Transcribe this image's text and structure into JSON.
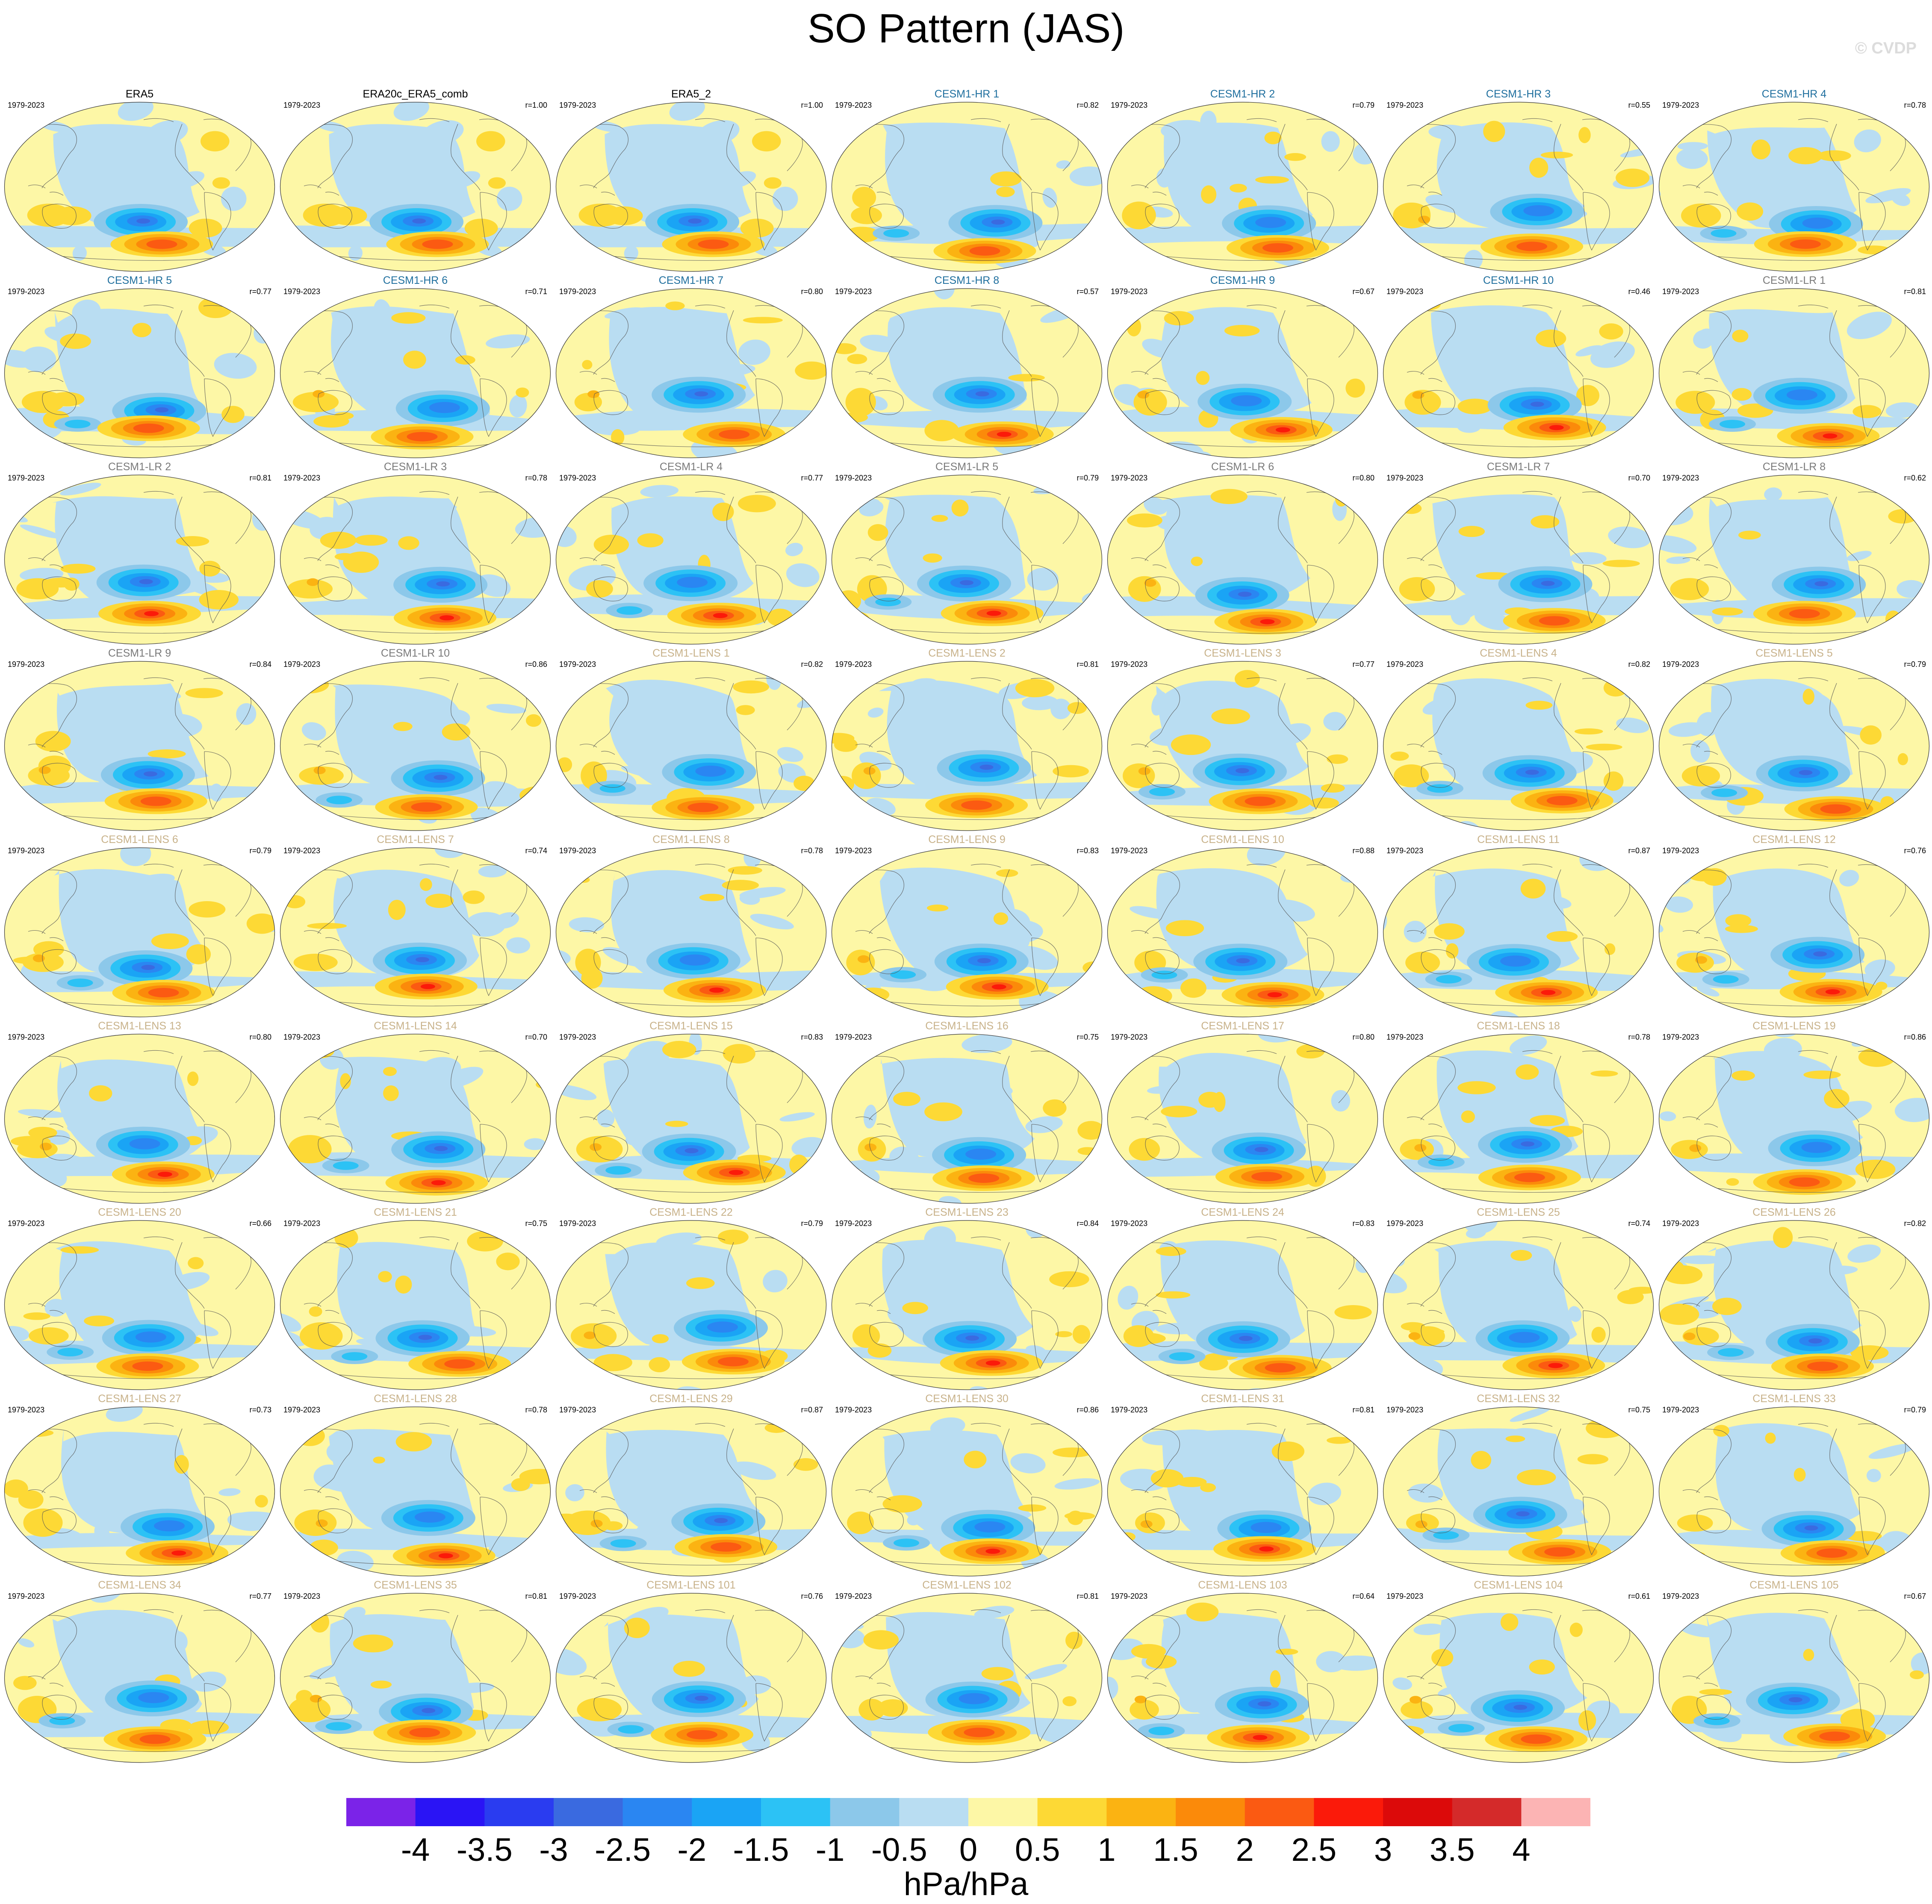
{
  "title": "SO Pattern (JAS)",
  "watermark": "© CVDP",
  "panels": [
    {
      "name": "ERA5",
      "period": "1979-2023",
      "r": "",
      "group": "obs",
      "seed": 1
    },
    {
      "name": "ERA20c_ERA5_comb",
      "period": "1979-2023",
      "r": "r=1.00",
      "group": "obs",
      "seed": 1
    },
    {
      "name": "ERA5_2",
      "period": "1979-2023",
      "r": "r=1.00",
      "group": "obs",
      "seed": 1
    },
    {
      "name": "CESM1-HR 1",
      "period": "1979-2023",
      "r": "r=0.82",
      "group": "hr",
      "seed": 4
    },
    {
      "name": "CESM1-HR 2",
      "period": "1979-2023",
      "r": "r=0.79",
      "group": "hr",
      "seed": 5
    },
    {
      "name": "CESM1-HR 3",
      "period": "1979-2023",
      "r": "r=0.55",
      "group": "hr",
      "seed": 6
    },
    {
      "name": "CESM1-HR 4",
      "period": "1979-2023",
      "r": "r=0.78",
      "group": "hr",
      "seed": 7
    },
    {
      "name": "CESM1-HR 5",
      "period": "1979-2023",
      "r": "r=0.77",
      "group": "hr",
      "seed": 8
    },
    {
      "name": "CESM1-HR 6",
      "period": "1979-2023",
      "r": "r=0.71",
      "group": "hr",
      "seed": 9
    },
    {
      "name": "CESM1-HR 7",
      "period": "1979-2023",
      "r": "r=0.80",
      "group": "hr",
      "seed": 10
    },
    {
      "name": "CESM1-HR 8",
      "period": "1979-2023",
      "r": "r=0.57",
      "group": "hr",
      "seed": 11
    },
    {
      "name": "CESM1-HR 9",
      "period": "1979-2023",
      "r": "r=0.67",
      "group": "hr",
      "seed": 12
    },
    {
      "name": "CESM1-HR 10",
      "period": "1979-2023",
      "r": "r=0.46",
      "group": "hr",
      "seed": 13
    },
    {
      "name": "CESM1-LR 1",
      "period": "1979-2023",
      "r": "r=0.81",
      "group": "lr",
      "seed": 14
    },
    {
      "name": "CESM1-LR 2",
      "period": "1979-2023",
      "r": "r=0.81",
      "group": "lr",
      "seed": 15
    },
    {
      "name": "CESM1-LR 3",
      "period": "1979-2023",
      "r": "r=0.78",
      "group": "lr",
      "seed": 16
    },
    {
      "name": "CESM1-LR 4",
      "period": "1979-2023",
      "r": "r=0.77",
      "group": "lr",
      "seed": 17
    },
    {
      "name": "CESM1-LR 5",
      "period": "1979-2023",
      "r": "r=0.79",
      "group": "lr",
      "seed": 18
    },
    {
      "name": "CESM1-LR 6",
      "period": "1979-2023",
      "r": "r=0.80",
      "group": "lr",
      "seed": 19
    },
    {
      "name": "CESM1-LR 7",
      "period": "1979-2023",
      "r": "r=0.70",
      "group": "lr",
      "seed": 20
    },
    {
      "name": "CESM1-LR 8",
      "period": "1979-2023",
      "r": "r=0.62",
      "group": "lr",
      "seed": 21
    },
    {
      "name": "CESM1-LR 9",
      "period": "1979-2023",
      "r": "r=0.84",
      "group": "lr",
      "seed": 22
    },
    {
      "name": "CESM1-LR 10",
      "period": "1979-2023",
      "r": "r=0.86",
      "group": "lr",
      "seed": 23
    },
    {
      "name": "CESM1-LENS 1",
      "period": "1979-2023",
      "r": "r=0.82",
      "group": "lens",
      "seed": 24
    },
    {
      "name": "CESM1-LENS 2",
      "period": "1979-2023",
      "r": "r=0.81",
      "group": "lens",
      "seed": 25
    },
    {
      "name": "CESM1-LENS 3",
      "period": "1979-2023",
      "r": "r=0.77",
      "group": "lens",
      "seed": 26
    },
    {
      "name": "CESM1-LENS 4",
      "period": "1979-2023",
      "r": "r=0.82",
      "group": "lens",
      "seed": 27
    },
    {
      "name": "CESM1-LENS 5",
      "period": "1979-2023",
      "r": "r=0.79",
      "group": "lens",
      "seed": 28
    },
    {
      "name": "CESM1-LENS 6",
      "period": "1979-2023",
      "r": "r=0.79",
      "group": "lens",
      "seed": 29
    },
    {
      "name": "CESM1-LENS 7",
      "period": "1979-2023",
      "r": "r=0.74",
      "group": "lens",
      "seed": 30
    },
    {
      "name": "CESM1-LENS 8",
      "period": "1979-2023",
      "r": "r=0.78",
      "group": "lens",
      "seed": 31
    },
    {
      "name": "CESM1-LENS 9",
      "period": "1979-2023",
      "r": "r=0.83",
      "group": "lens",
      "seed": 32
    },
    {
      "name": "CESM1-LENS 10",
      "period": "1979-2023",
      "r": "r=0.88",
      "group": "lens",
      "seed": 33
    },
    {
      "name": "CESM1-LENS 11",
      "period": "1979-2023",
      "r": "r=0.87",
      "group": "lens",
      "seed": 34
    },
    {
      "name": "CESM1-LENS 12",
      "period": "1979-2023",
      "r": "r=0.76",
      "group": "lens",
      "seed": 35
    },
    {
      "name": "CESM1-LENS 13",
      "period": "1979-2023",
      "r": "r=0.80",
      "group": "lens",
      "seed": 36
    },
    {
      "name": "CESM1-LENS 14",
      "period": "1979-2023",
      "r": "r=0.70",
      "group": "lens",
      "seed": 37
    },
    {
      "name": "CESM1-LENS 15",
      "period": "1979-2023",
      "r": "r=0.83",
      "group": "lens",
      "seed": 38
    },
    {
      "name": "CESM1-LENS 16",
      "period": "1979-2023",
      "r": "r=0.75",
      "group": "lens",
      "seed": 39
    },
    {
      "name": "CESM1-LENS 17",
      "period": "1979-2023",
      "r": "r=0.80",
      "group": "lens",
      "seed": 40
    },
    {
      "name": "CESM1-LENS 18",
      "period": "1979-2023",
      "r": "r=0.78",
      "group": "lens",
      "seed": 41
    },
    {
      "name": "CESM1-LENS 19",
      "period": "1979-2023",
      "r": "r=0.86",
      "group": "lens",
      "seed": 42
    },
    {
      "name": "CESM1-LENS 20",
      "period": "1979-2023",
      "r": "r=0.66",
      "group": "lens",
      "seed": 43
    },
    {
      "name": "CESM1-LENS 21",
      "period": "1979-2023",
      "r": "r=0.75",
      "group": "lens",
      "seed": 44
    },
    {
      "name": "CESM1-LENS 22",
      "period": "1979-2023",
      "r": "r=0.79",
      "group": "lens",
      "seed": 45
    },
    {
      "name": "CESM1-LENS 23",
      "period": "1979-2023",
      "r": "r=0.84",
      "group": "lens",
      "seed": 46
    },
    {
      "name": "CESM1-LENS 24",
      "period": "1979-2023",
      "r": "r=0.83",
      "group": "lens",
      "seed": 47
    },
    {
      "name": "CESM1-LENS 25",
      "period": "1979-2023",
      "r": "r=0.74",
      "group": "lens",
      "seed": 48
    },
    {
      "name": "CESM1-LENS 26",
      "period": "1979-2023",
      "r": "r=0.82",
      "group": "lens",
      "seed": 49
    },
    {
      "name": "CESM1-LENS 27",
      "period": "1979-2023",
      "r": "r=0.73",
      "group": "lens",
      "seed": 50
    },
    {
      "name": "CESM1-LENS 28",
      "period": "1979-2023",
      "r": "r=0.78",
      "group": "lens",
      "seed": 51
    },
    {
      "name": "CESM1-LENS 29",
      "period": "1979-2023",
      "r": "r=0.87",
      "group": "lens",
      "seed": 52
    },
    {
      "name": "CESM1-LENS 30",
      "period": "1979-2023",
      "r": "r=0.86",
      "group": "lens",
      "seed": 53
    },
    {
      "name": "CESM1-LENS 31",
      "period": "1979-2023",
      "r": "r=0.81",
      "group": "lens",
      "seed": 54
    },
    {
      "name": "CESM1-LENS 32",
      "period": "1979-2023",
      "r": "r=0.75",
      "group": "lens",
      "seed": 55
    },
    {
      "name": "CESM1-LENS 33",
      "period": "1979-2023",
      "r": "r=0.79",
      "group": "lens",
      "seed": 56
    },
    {
      "name": "CESM1-LENS 34",
      "period": "1979-2023",
      "r": "r=0.77",
      "group": "lens",
      "seed": 57
    },
    {
      "name": "CESM1-LENS 35",
      "period": "1979-2023",
      "r": "r=0.81",
      "group": "lens",
      "seed": 58
    },
    {
      "name": "CESM1-LENS 101",
      "period": "1979-2023",
      "r": "r=0.76",
      "group": "lens",
      "seed": 59
    },
    {
      "name": "CESM1-LENS 102",
      "period": "1979-2023",
      "r": "r=0.81",
      "group": "lens",
      "seed": 60
    },
    {
      "name": "CESM1-LENS 103",
      "period": "1979-2023",
      "r": "r=0.64",
      "group": "lens",
      "seed": 61
    },
    {
      "name": "CESM1-LENS 104",
      "period": "1979-2023",
      "r": "r=0.61",
      "group": "lens",
      "seed": 62
    },
    {
      "name": "CESM1-LENS 105",
      "period": "1979-2023",
      "r": "r=0.67",
      "group": "lens",
      "seed": 63
    }
  ],
  "group_colors": {
    "obs": "#000000",
    "hr": "#1f6f9e",
    "lr": "#7a7a7a",
    "lens": "#c8b28a"
  },
  "colorbar": {
    "colors": [
      "#7b23e8",
      "#2a14f5",
      "#2a3cf0",
      "#3a6ae0",
      "#2a86f2",
      "#1aa4f5",
      "#2cc2f5",
      "#8cc8ea",
      "#b9ddf2",
      "#fdf7a6",
      "#fdd935",
      "#fbb312",
      "#fb8a0a",
      "#fb5a12",
      "#fb1a0a",
      "#dc0a0a",
      "#d42a2a",
      "#fcb4b4"
    ],
    "ticks": [
      "-4",
      "-3.5",
      "-3",
      "-2.5",
      "-2",
      "-1.5",
      "-1",
      "-0.5",
      "0",
      "0.5",
      "1",
      "1.5",
      "2",
      "2.5",
      "3",
      "3.5",
      "4"
    ],
    "units": "hPa/hPa"
  },
  "map_colors": {
    "ocean_border": "#333333",
    "coast": "#555555"
  }
}
